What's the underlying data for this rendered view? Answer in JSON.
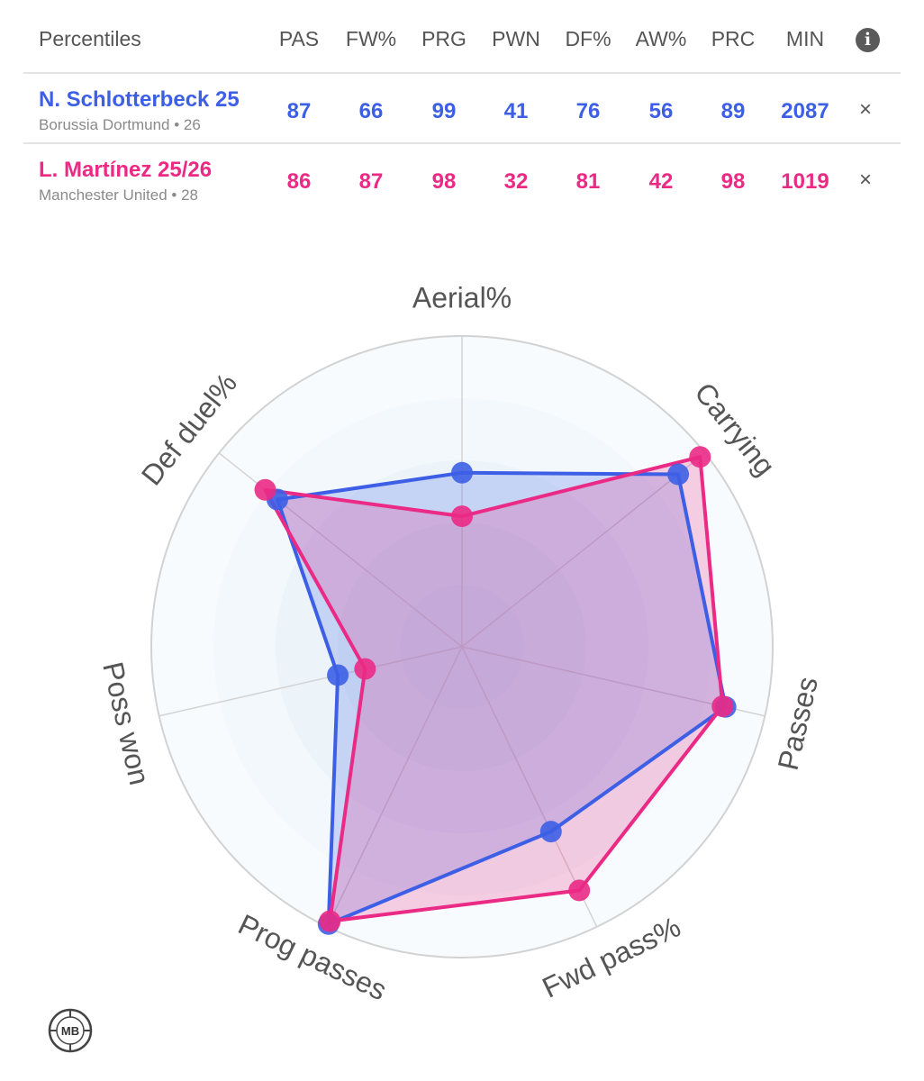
{
  "table": {
    "title": "Percentiles",
    "columns": [
      "PAS",
      "FW%",
      "PRG",
      "PWN",
      "DF%",
      "AW%",
      "PRC",
      "MIN"
    ],
    "info_icon": "info-icon",
    "close_icon": "close-icon",
    "close_glyph": "×",
    "players": [
      {
        "name": "N. Schlotterbeck 25",
        "club": "Borussia Dortmund • 26",
        "values": [
          "87",
          "66",
          "99",
          "41",
          "76",
          "56",
          "89",
          "2087"
        ],
        "color": "#3d5fe6"
      },
      {
        "name": "L. Martínez 25/26",
        "club": "Manchester United • 28",
        "values": [
          "86",
          "87",
          "98",
          "32",
          "81",
          "42",
          "98",
          "1019"
        ],
        "color": "#ea2a85"
      }
    ]
  },
  "chart_data": {
    "type": "radar",
    "axes": [
      "Aerial%",
      "Carrying",
      "Passes",
      "Fwd pass%",
      "Prog passes",
      "Poss won",
      "Def duel%"
    ],
    "range": [
      0,
      100
    ],
    "series": [
      {
        "name": "N. Schlotterbeck 25",
        "values": [
          56,
          89,
          87,
          66,
          99,
          41,
          76
        ],
        "color": "#3d5fe6"
      },
      {
        "name": "L. Martínez 25/26",
        "values": [
          42,
          98,
          86,
          87,
          98,
          32,
          81
        ],
        "color": "#ea2a85"
      }
    ]
  },
  "logo": {
    "text": "MB"
  }
}
